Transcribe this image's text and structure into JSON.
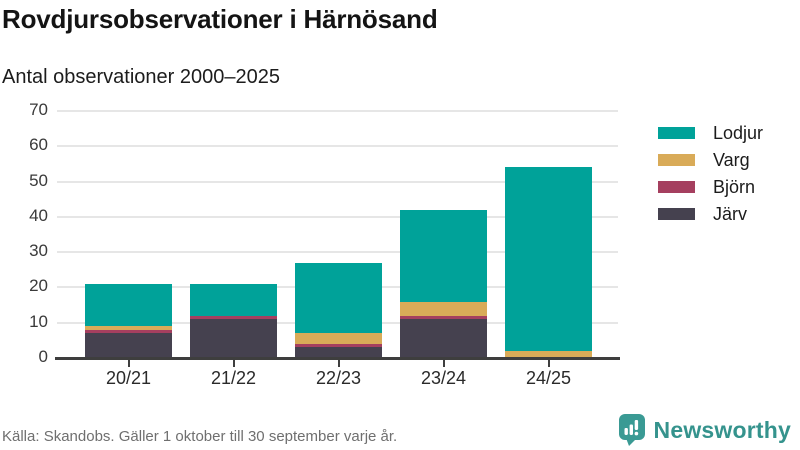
{
  "header": {
    "title": "Rovdjursobservationer i Härnösand",
    "subtitle": "Antal observationer 2000–2025"
  },
  "chart_data": {
    "type": "bar",
    "stacked": true,
    "title": "Rovdjursobservationer i Härnösand",
    "subtitle": "Antal observationer 2000–2025",
    "categories": [
      "20/21",
      "21/22",
      "22/23",
      "23/24",
      "24/25"
    ],
    "series": [
      {
        "name": "Järv",
        "color": "#45414f",
        "values": [
          7,
          11,
          3,
          11,
          0
        ]
      },
      {
        "name": "Björn",
        "color": "#a53f5f",
        "values": [
          1,
          1,
          1,
          1,
          0
        ]
      },
      {
        "name": "Varg",
        "color": "#d9ab58",
        "values": [
          1,
          0,
          3,
          4,
          2
        ]
      },
      {
        "name": "Lodjur",
        "color": "#00a299",
        "values": [
          12,
          9,
          20,
          26,
          52
        ]
      }
    ],
    "ylim": [
      0,
      70
    ],
    "yticks": [
      0,
      10,
      20,
      30,
      40,
      50,
      60,
      70
    ],
    "grid": true,
    "legend_position": "right",
    "legend_order": [
      "Lodjur",
      "Varg",
      "Björn",
      "Järv"
    ]
  },
  "footer": {
    "source": "Källa: Skandobs. Gäller 1 oktober till 30 september varje år.",
    "brand": "Newsworthy",
    "brand_color": "#35938d"
  }
}
